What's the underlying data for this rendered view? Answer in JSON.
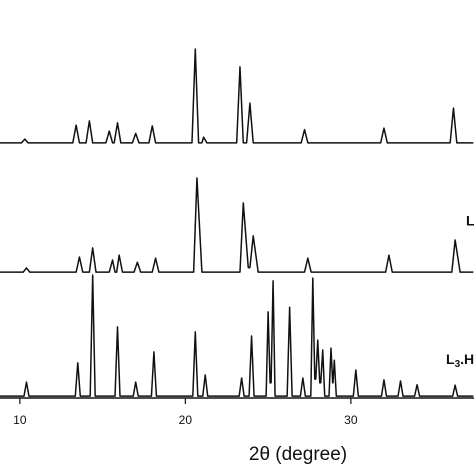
{
  "chart_data": {
    "type": "line",
    "x_label": "2θ (degree)",
    "xlim": [
      8.8,
      37.44
    ],
    "xticks": [
      10,
      20,
      30
    ],
    "ylim": [
      0,
      100
    ],
    "series": [
      {
        "color": "#111111",
        "x": [
          8.8,
          10.1,
          10.3,
          10.5,
          13.2,
          13.4,
          13.6,
          14.0,
          14.2,
          14.4,
          15.2,
          15.4,
          15.6,
          15.7,
          15.9,
          16.1,
          16.8,
          17.0,
          17.2,
          17.8,
          18.0,
          18.2,
          20.4,
          20.6,
          20.8,
          21.0,
          21.1,
          21.3,
          23.1,
          23.3,
          23.5,
          23.7,
          23.9,
          24.1,
          27.0,
          27.2,
          27.4,
          31.8,
          32.0,
          32.2,
          36.0,
          36.2,
          36.4,
          37.4
        ],
        "values": [
          67.5,
          67.5,
          68.5,
          67.5,
          67.5,
          72.2,
          67.5,
          67.5,
          73.3,
          67.5,
          67.5,
          70.6,
          67.5,
          67.5,
          72.8,
          67.5,
          67.5,
          70,
          67.5,
          67.5,
          72,
          67.5,
          67.5,
          92.3,
          67.5,
          67.5,
          69,
          67.5,
          67.5,
          87.6,
          67.5,
          67.5,
          78,
          67.5,
          67.5,
          71,
          67.5,
          67.5,
          71.4,
          67.5,
          67.5,
          76.7,
          67.5,
          67.5
        ]
      },
      {
        "color": "#111111",
        "x": [
          8.8,
          10.2,
          10.4,
          10.6,
          13.4,
          13.6,
          13.8,
          14.2,
          14.4,
          14.6,
          15.4,
          15.6,
          15.75,
          15.85,
          16.0,
          16.2,
          16.9,
          17.1,
          17.3,
          18.0,
          18.2,
          18.4,
          20.5,
          20.7,
          21.0,
          23.3,
          23.5,
          23.8,
          23.9,
          24.1,
          24.4,
          27.2,
          27.4,
          27.6,
          32.1,
          32.3,
          32.5,
          36.1,
          36.3,
          36.6,
          37.4
        ],
        "values": [
          33.3,
          33.3,
          34.4,
          33.3,
          33.3,
          37.3,
          33.3,
          33.3,
          39.7,
          33.3,
          33.3,
          36.5,
          33.3,
          33.3,
          37.8,
          33.3,
          33.3,
          35.9,
          33.3,
          33.3,
          37,
          33.3,
          33.3,
          58.2,
          33.3,
          33.3,
          51.6,
          34.5,
          34.5,
          42.9,
          33.3,
          33.3,
          37,
          33.3,
          33.3,
          37.8,
          33.3,
          33.3,
          41.8,
          33.3,
          33.3
        ]
      },
      {
        "color": "#111111",
        "x": [
          8.8,
          10.25,
          10.4,
          10.55,
          13.35,
          13.5,
          13.65,
          14.25,
          14.4,
          14.55,
          15.75,
          15.9,
          16.05,
          16.85,
          17.0,
          17.15,
          17.95,
          18.1,
          18.25,
          20.45,
          20.6,
          20.75,
          21.05,
          21.2,
          21.35,
          23.25,
          23.4,
          23.55,
          23.85,
          24.0,
          24.15,
          24.88,
          25.0,
          25.12,
          25.18,
          25.3,
          25.42,
          26.15,
          26.3,
          26.45,
          26.95,
          27.1,
          27.25,
          27.58,
          27.7,
          27.82,
          27.88,
          28.0,
          28.12,
          28.18,
          28.3,
          28.42,
          28.68,
          28.8,
          28.9,
          28.92,
          29.0,
          29.12,
          30.15,
          30.3,
          30.45,
          31.85,
          32.0,
          32.15,
          32.85,
          33.0,
          33.15,
          33.85,
          34.0,
          34.15,
          36.15,
          36.3,
          36.45,
          37.4
        ],
        "values": [
          0.5,
          0.5,
          4.2,
          0.5,
          0.5,
          9.3,
          0.5,
          0.5,
          32.5,
          0.5,
          0.5,
          18.8,
          0.5,
          0.5,
          4.2,
          0.5,
          0.5,
          12.2,
          0.5,
          0.5,
          17.5,
          0.5,
          0.5,
          6.1,
          0.5,
          0.5,
          5.3,
          0.5,
          0.5,
          16.4,
          0.5,
          0.5,
          22.8,
          4,
          4,
          31,
          0.5,
          0.5,
          24,
          0.5,
          0.5,
          5.3,
          0.5,
          0.5,
          31.7,
          5,
          5,
          15.3,
          4,
          4,
          12.7,
          0.5,
          0.5,
          13.2,
          4,
          4,
          10,
          0.5,
          0.5,
          7.4,
          0.5,
          0.5,
          4.8,
          0.5,
          0.5,
          4.5,
          0.5,
          0.5,
          3.5,
          0.5,
          0.5,
          3.4,
          0.5,
          0.5
        ]
      }
    ],
    "annotations": [
      {
        "text": "L"
      },
      {
        "text": "L",
        "sub": "3",
        "rest": ".H"
      }
    ]
  }
}
